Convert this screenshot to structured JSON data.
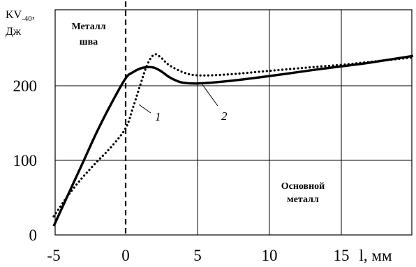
{
  "chart_data": {
    "type": "line",
    "ylabel_line1": "KV",
    "ylabel_sub": "-40",
    "ylabel_comma": ",",
    "ylabel_line2": "Дж",
    "xlabel": "l, мм",
    "xlim": [
      -5,
      20
    ],
    "ylim": [
      0,
      260
    ],
    "x_ticks": [
      "-5",
      "0",
      "5",
      "10",
      "15"
    ],
    "y_ticks": [
      "0",
      "100",
      "200"
    ],
    "grid": true,
    "fusion_line_x": 0,
    "annotations": {
      "weld_metal_line1": "Металл",
      "weld_metal_line2": "шва",
      "base_metal_line1": "Основной",
      "base_metal_line2": "металл",
      "curve1_label": "1",
      "curve2_label": "2"
    },
    "series": [
      {
        "label": "1",
        "style": "solid",
        "color": "#000000",
        "points": [
          [
            -5,
            12
          ],
          [
            -4,
            54
          ],
          [
            -3,
            96
          ],
          [
            -2,
            138
          ],
          [
            -1,
            176
          ],
          [
            0,
            210
          ],
          [
            0.5,
            218
          ],
          [
            1,
            223
          ],
          [
            1.5,
            225
          ],
          [
            2,
            224
          ],
          [
            2.5,
            219
          ],
          [
            3,
            212
          ],
          [
            3.5,
            207
          ],
          [
            4,
            204
          ],
          [
            5,
            203
          ],
          [
            7,
            206
          ],
          [
            10,
            213
          ],
          [
            13,
            221
          ],
          [
            15,
            226
          ],
          [
            17,
            231
          ],
          [
            20,
            240
          ]
        ]
      },
      {
        "label": "2",
        "style": "dotted",
        "color": "#000000",
        "points": [
          [
            -5,
            25
          ],
          [
            -4,
            53
          ],
          [
            -3,
            77
          ],
          [
            -2,
            98
          ],
          [
            -1,
            118
          ],
          [
            0,
            143
          ],
          [
            0.5,
            170
          ],
          [
            1,
            200
          ],
          [
            1.5,
            228
          ],
          [
            2,
            242
          ],
          [
            2.5,
            237
          ],
          [
            3,
            228
          ],
          [
            4,
            218
          ],
          [
            5,
            214
          ],
          [
            7,
            215
          ],
          [
            10,
            220
          ],
          [
            13,
            225
          ],
          [
            15,
            228
          ],
          [
            17,
            232
          ],
          [
            20,
            238
          ]
        ]
      }
    ]
  }
}
